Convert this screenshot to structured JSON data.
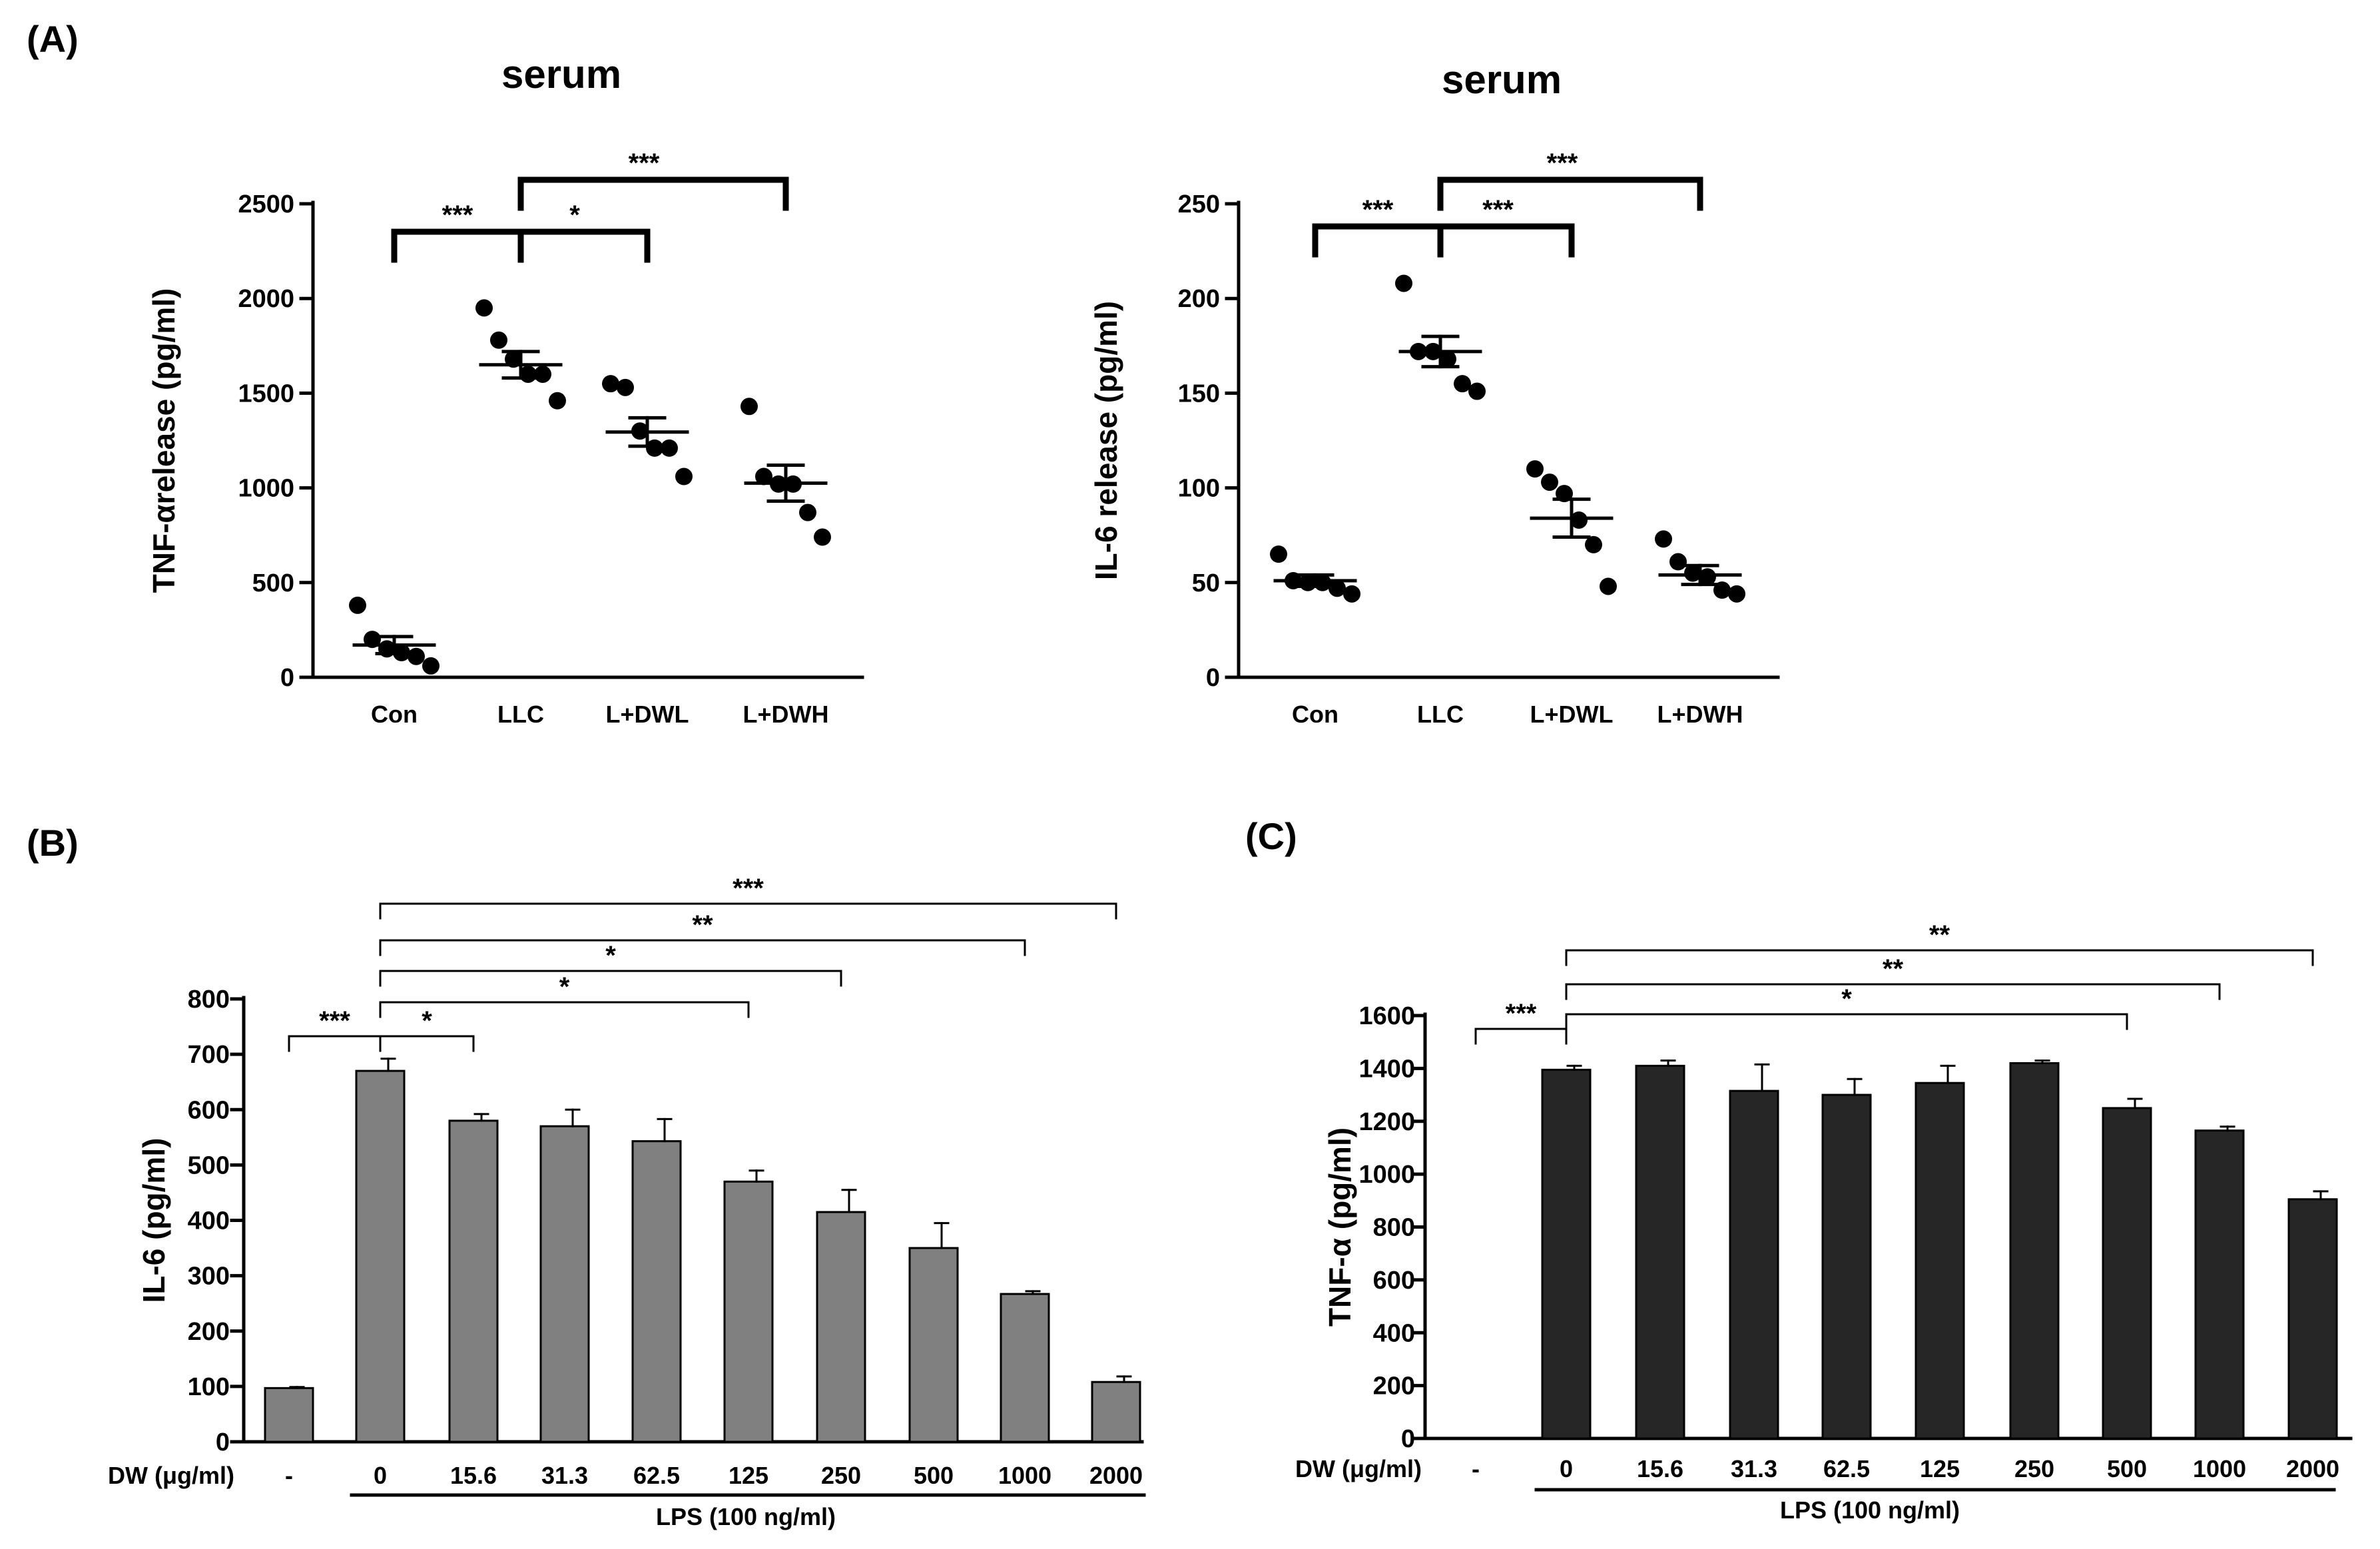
{
  "panel_labels": {
    "a": "(A)",
    "b": "(B)",
    "c": "(C)"
  },
  "axis_common": {
    "dw_label": "DW (μg/ml)",
    "lps_label": "LPS (100 ng/ml)"
  },
  "chart_data": [
    {
      "id": "A1",
      "type": "scatter",
      "title": "serum",
      "ylabel": "TNF-αrelease (pg/ml)",
      "ylim": [
        0,
        2500
      ],
      "yticks": [
        0,
        500,
        1000,
        1500,
        2000,
        2500
      ],
      "categories": [
        "Con",
        "LLC",
        "L+DWL",
        "L+DWH"
      ],
      "points": [
        [
          380,
          200,
          150,
          130,
          110,
          60
        ],
        [
          1950,
          1780,
          1680,
          1600,
          1600,
          1460
        ],
        [
          1550,
          1530,
          1300,
          1210,
          1210,
          1060
        ],
        [
          1430,
          1060,
          1020,
          1020,
          870,
          740
        ]
      ],
      "means": [
        170,
        1650,
        1295,
        1025
      ],
      "sem": [
        45,
        70,
        75,
        95
      ],
      "significance": [
        {
          "from": "Con",
          "to": "LLC",
          "label": "***"
        },
        {
          "from": "LLC",
          "to": "L+DWL",
          "label": "*"
        },
        {
          "from": "LLC",
          "to": "L+DWH",
          "label": "***"
        }
      ]
    },
    {
      "id": "A2",
      "type": "scatter",
      "title": "serum",
      "ylabel": "IL-6 release (pg/ml)",
      "ylim": [
        0,
        250
      ],
      "yticks": [
        0,
        50,
        100,
        150,
        200,
        250
      ],
      "categories": [
        "Con",
        "LLC",
        "L+DWL",
        "L+DWH"
      ],
      "points": [
        [
          65,
          51,
          50,
          50,
          47,
          44
        ],
        [
          208,
          172,
          172,
          168,
          155,
          151
        ],
        [
          110,
          103,
          97,
          83,
          70,
          48
        ],
        [
          73,
          61,
          55,
          53,
          46,
          44
        ]
      ],
      "means": [
        51,
        172,
        84,
        54
      ],
      "sem": [
        3,
        8,
        10,
        5
      ],
      "significance": [
        {
          "from": "Con",
          "to": "LLC",
          "label": "***"
        },
        {
          "from": "LLC",
          "to": "L+DWL",
          "label": "***"
        },
        {
          "from": "LLC",
          "to": "L+DWH",
          "label": "***"
        }
      ]
    },
    {
      "id": "B",
      "type": "bar",
      "ylabel": "IL-6 (pg/ml)",
      "ylim": [
        0,
        800
      ],
      "yticks": [
        0,
        100,
        200,
        300,
        400,
        500,
        600,
        700,
        800
      ],
      "categories": [
        "-",
        "0",
        "15.6",
        "31.3",
        "62.5",
        "125",
        "250",
        "500",
        "1000",
        "2000"
      ],
      "values": [
        97,
        670,
        580,
        570,
        543,
        470,
        415,
        350,
        267,
        108
      ],
      "errors": [
        2,
        22,
        12,
        30,
        40,
        20,
        40,
        45,
        5,
        10
      ],
      "bar_color": "#808080",
      "significance": [
        {
          "from": 0,
          "to": 1,
          "label": "***"
        },
        {
          "from": 1,
          "to": 2,
          "label": "*"
        },
        {
          "from": 1,
          "to": 5,
          "label": "*"
        },
        {
          "from": 1,
          "to": 6,
          "label": "*"
        },
        {
          "from": 1,
          "to": 8,
          "label": "**"
        },
        {
          "from": 1,
          "to": 9,
          "label": "***"
        }
      ]
    },
    {
      "id": "C",
      "type": "bar",
      "ylabel": "TNF-α (pg/ml)",
      "ylim": [
        0,
        1600
      ],
      "yticks": [
        0,
        200,
        400,
        600,
        800,
        1000,
        1200,
        1400,
        1600
      ],
      "categories": [
        "-",
        "0",
        "15.6",
        "31.3",
        "62.5",
        "125",
        "250",
        "500",
        "1000",
        "2000"
      ],
      "values": [
        0,
        1395,
        1410,
        1315,
        1300,
        1345,
        1420,
        1250,
        1165,
        905
      ],
      "errors": [
        0,
        15,
        20,
        100,
        60,
        65,
        10,
        35,
        15,
        30
      ],
      "bar_color": "#262626",
      "significance": [
        {
          "from": 0,
          "to": 1,
          "label": "***"
        },
        {
          "from": 1,
          "to": 7,
          "label": "*"
        },
        {
          "from": 1,
          "to": 8,
          "label": "**"
        },
        {
          "from": 1,
          "to": 9,
          "label": "**"
        }
      ]
    }
  ]
}
